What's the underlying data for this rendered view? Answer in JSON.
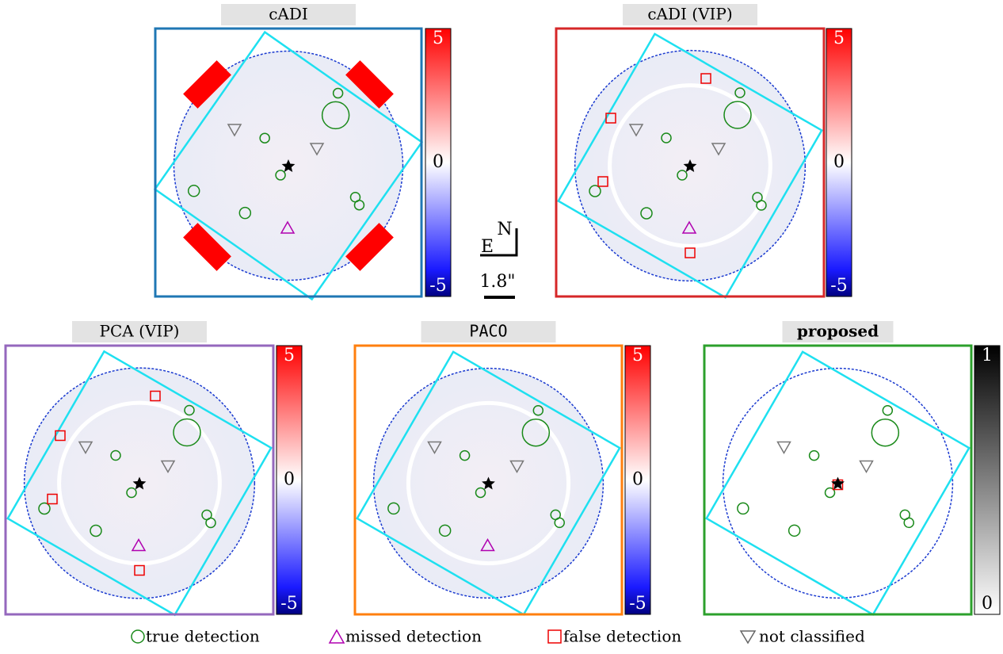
{
  "panels": [
    {
      "title": "cADI",
      "colorbar": [
        5,
        0,
        -5
      ]
    },
    {
      "title": "cADI (VIP)",
      "colorbar": [
        5,
        0,
        -5
      ]
    },
    {
      "title": "PCA (VIP)",
      "colorbar": [
        5,
        0,
        -5
      ]
    },
    {
      "title": "PACO",
      "colorbar": [
        5,
        0,
        -5
      ]
    },
    {
      "title": "proposed",
      "colorbar": [
        1,
        0
      ]
    }
  ],
  "compass": {
    "north": "N",
    "east": "E"
  },
  "scale": "1.8\"",
  "legend": [
    "true detection",
    "missed detection",
    "false detection",
    "not classified"
  ]
}
